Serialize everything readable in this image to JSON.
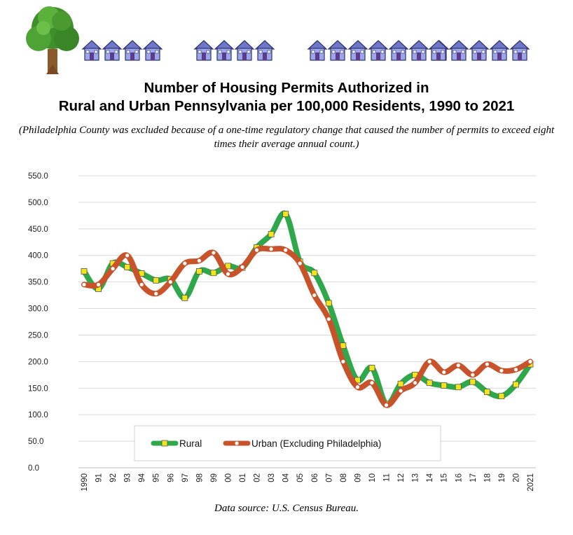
{
  "header": {
    "title_line1": "Number of Housing Permits Authorized in",
    "title_line2": "Rural and Urban Pennsylvania per 100,000 Residents, 1990 to 2021",
    "subtitle": "(Philadelphia County was excluded because of a one-time regulatory change that caused the number of permits to exceed eight times their average annual count.)",
    "decor_icons": [
      "tree-icon",
      "house-icon"
    ]
  },
  "footer": {
    "source": "Data source: U.S. Census Bureau."
  },
  "chart_data": {
    "type": "line",
    "title": "Number of Housing Permits Authorized in Rural and Urban Pennsylvania per 100,000 Residents, 1990 to 2021",
    "xlabel": "",
    "ylabel": "",
    "categories": [
      "1990",
      "91",
      "92",
      "93",
      "94",
      "95",
      "96",
      "97",
      "98",
      "99",
      "00",
      "01",
      "02",
      "03",
      "04",
      "05",
      "06",
      "07",
      "08",
      "09",
      "10",
      "11",
      "12",
      "13",
      "14",
      "15",
      "16",
      "17",
      "18",
      "19",
      "20",
      "2021"
    ],
    "yticks": [
      "0.0",
      "50.0",
      "100.0",
      "150.0",
      "200.0",
      "250.0",
      "300.0",
      "350.0",
      "400.0",
      "450.0",
      "500.0",
      "550.0"
    ],
    "ylim": [
      0,
      550
    ],
    "grid": true,
    "legend_position": "bottom",
    "series": [
      {
        "name": "Rural",
        "color": "#2ea84a",
        "marker": "square",
        "marker_color": "#f2e51c",
        "values": [
          370,
          337,
          385,
          378,
          366,
          353,
          355,
          320,
          370,
          367,
          380,
          377,
          415,
          440,
          478,
          388,
          367,
          310,
          230,
          165,
          188,
          120,
          158,
          175,
          160,
          155,
          152,
          162,
          143,
          135,
          157,
          195
        ]
      },
      {
        "name": "Urban (Excluding Philadelphia)",
        "color": "#c8532a",
        "marker": "circle",
        "marker_color": "#ffffff",
        "values": [
          345,
          345,
          375,
          400,
          345,
          328,
          350,
          385,
          390,
          405,
          365,
          378,
          410,
          412,
          410,
          385,
          325,
          280,
          200,
          152,
          160,
          118,
          145,
          160,
          200,
          180,
          193,
          175,
          195,
          183,
          185,
          200
        ]
      }
    ]
  }
}
